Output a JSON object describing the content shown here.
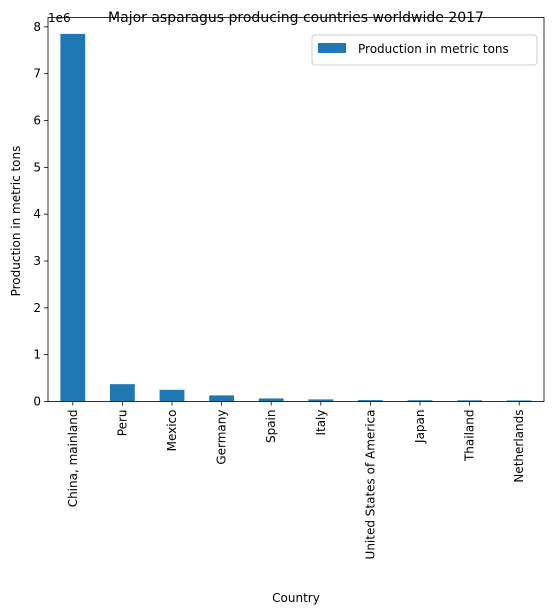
{
  "chart_data": {
    "type": "bar",
    "title": "Major asparagus producing countries worldwide 2017",
    "xlabel": "Country",
    "ylabel": "Production in metric tons",
    "y_offset_label": "1e6",
    "ylim": [
      0,
      8200000
    ],
    "yticks": [
      0,
      1,
      2,
      3,
      4,
      5,
      6,
      7,
      8
    ],
    "ytick_scale": 1000000,
    "legend_position": "top-right",
    "grid": false,
    "bar_color": "#1f77b4",
    "categories": [
      "China, mainland",
      "Peru",
      "Mexico",
      "Germany",
      "Spain",
      "Italy",
      "United States of America",
      "Japan",
      "Thailand",
      "Netherlands"
    ],
    "series": [
      {
        "name": "Production in metric tons",
        "values": [
          7850000,
          370000,
          250000,
          130000,
          65000,
          45000,
          30000,
          27000,
          25000,
          22000
        ]
      }
    ]
  }
}
